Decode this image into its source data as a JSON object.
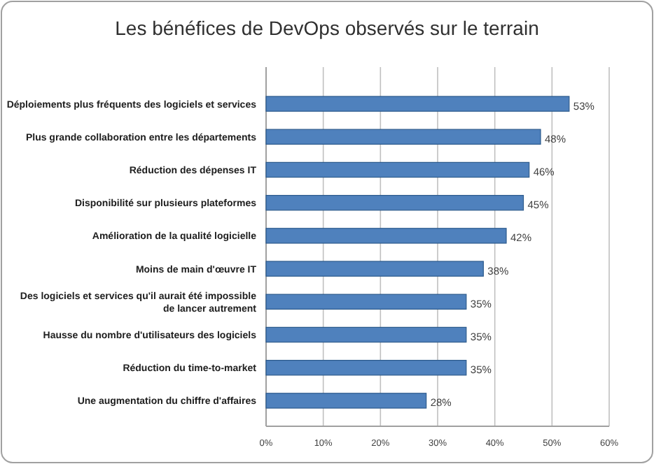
{
  "chart_data": {
    "type": "bar",
    "orientation": "horizontal",
    "title": "Les bénéfices de DevOps observés sur le terrain",
    "categories": [
      "Déploiements plus fréquents des logiciels et services",
      "Plus grande collaboration entre les départements",
      "Réduction des dépenses IT",
      "Disponibilité sur plusieurs plateformes",
      "Amélioration de la qualité logicielle",
      "Moins de main d'œuvre IT",
      "Des logiciels et services qu'il aurait été impossible de lancer autrement",
      "Hausse du nombre d'utilisateurs des logiciels",
      "Réduction du time-to-market",
      "Une augmentation du chiffre d'affaires"
    ],
    "values": [
      53,
      48,
      46,
      45,
      42,
      38,
      35,
      35,
      35,
      28
    ],
    "value_labels": [
      "53%",
      "48%",
      "46%",
      "45%",
      "42%",
      "38%",
      "35%",
      "35%",
      "35%",
      "28%"
    ],
    "color": "#4f81bd",
    "xlim": [
      0,
      60
    ],
    "xticks": [
      {
        "value": 0,
        "label": "0%"
      },
      {
        "value": 10,
        "label": "10%"
      },
      {
        "value": 20,
        "label": "20%"
      },
      {
        "value": 30,
        "label": "30%"
      },
      {
        "value": 40,
        "label": "40%"
      },
      {
        "value": 50,
        "label": "50%"
      },
      {
        "value": 60,
        "label": "60%"
      }
    ],
    "grid": "x"
  }
}
